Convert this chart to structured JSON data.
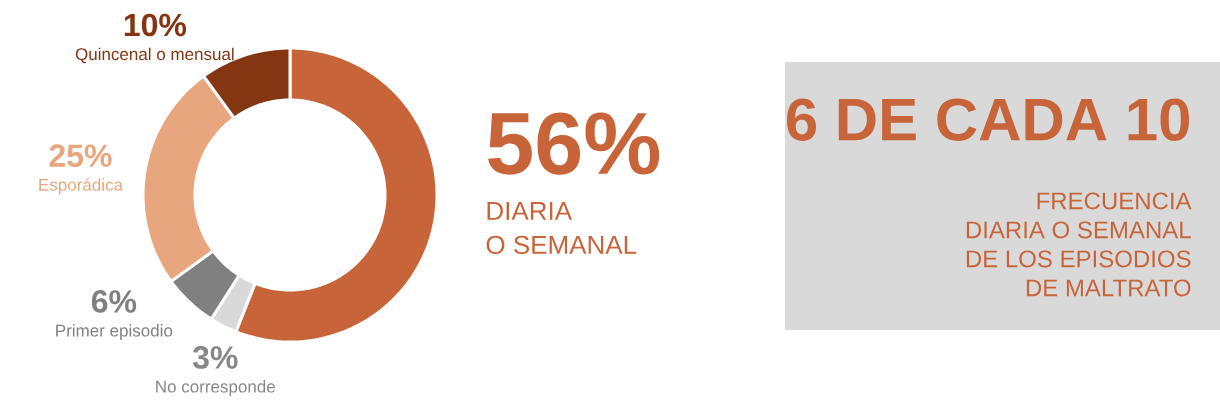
{
  "chart_data": [
    {
      "type": "donut",
      "categories": [
        "DIARIA O SEMANAL",
        "No corresponde",
        "Primer episodio",
        "Esporádica",
        "Quincenal o mensual"
      ],
      "values": [
        56,
        3,
        6,
        25,
        10
      ],
      "value_labels": [
        "56%",
        "3%",
        "6%",
        "25%",
        "10%"
      ],
      "colors": [
        "#c8643a",
        "#d9d9d9",
        "#808080",
        "#e8a67e",
        "#843512"
      ]
    },
    {
      "type": "other",
      "title": "6 DE CADA 10",
      "subtitle": "FRECUENCIA DIARIA O SEMANAL DE LOS EPISODIOS DE MALTRATO"
    }
  ]
}
